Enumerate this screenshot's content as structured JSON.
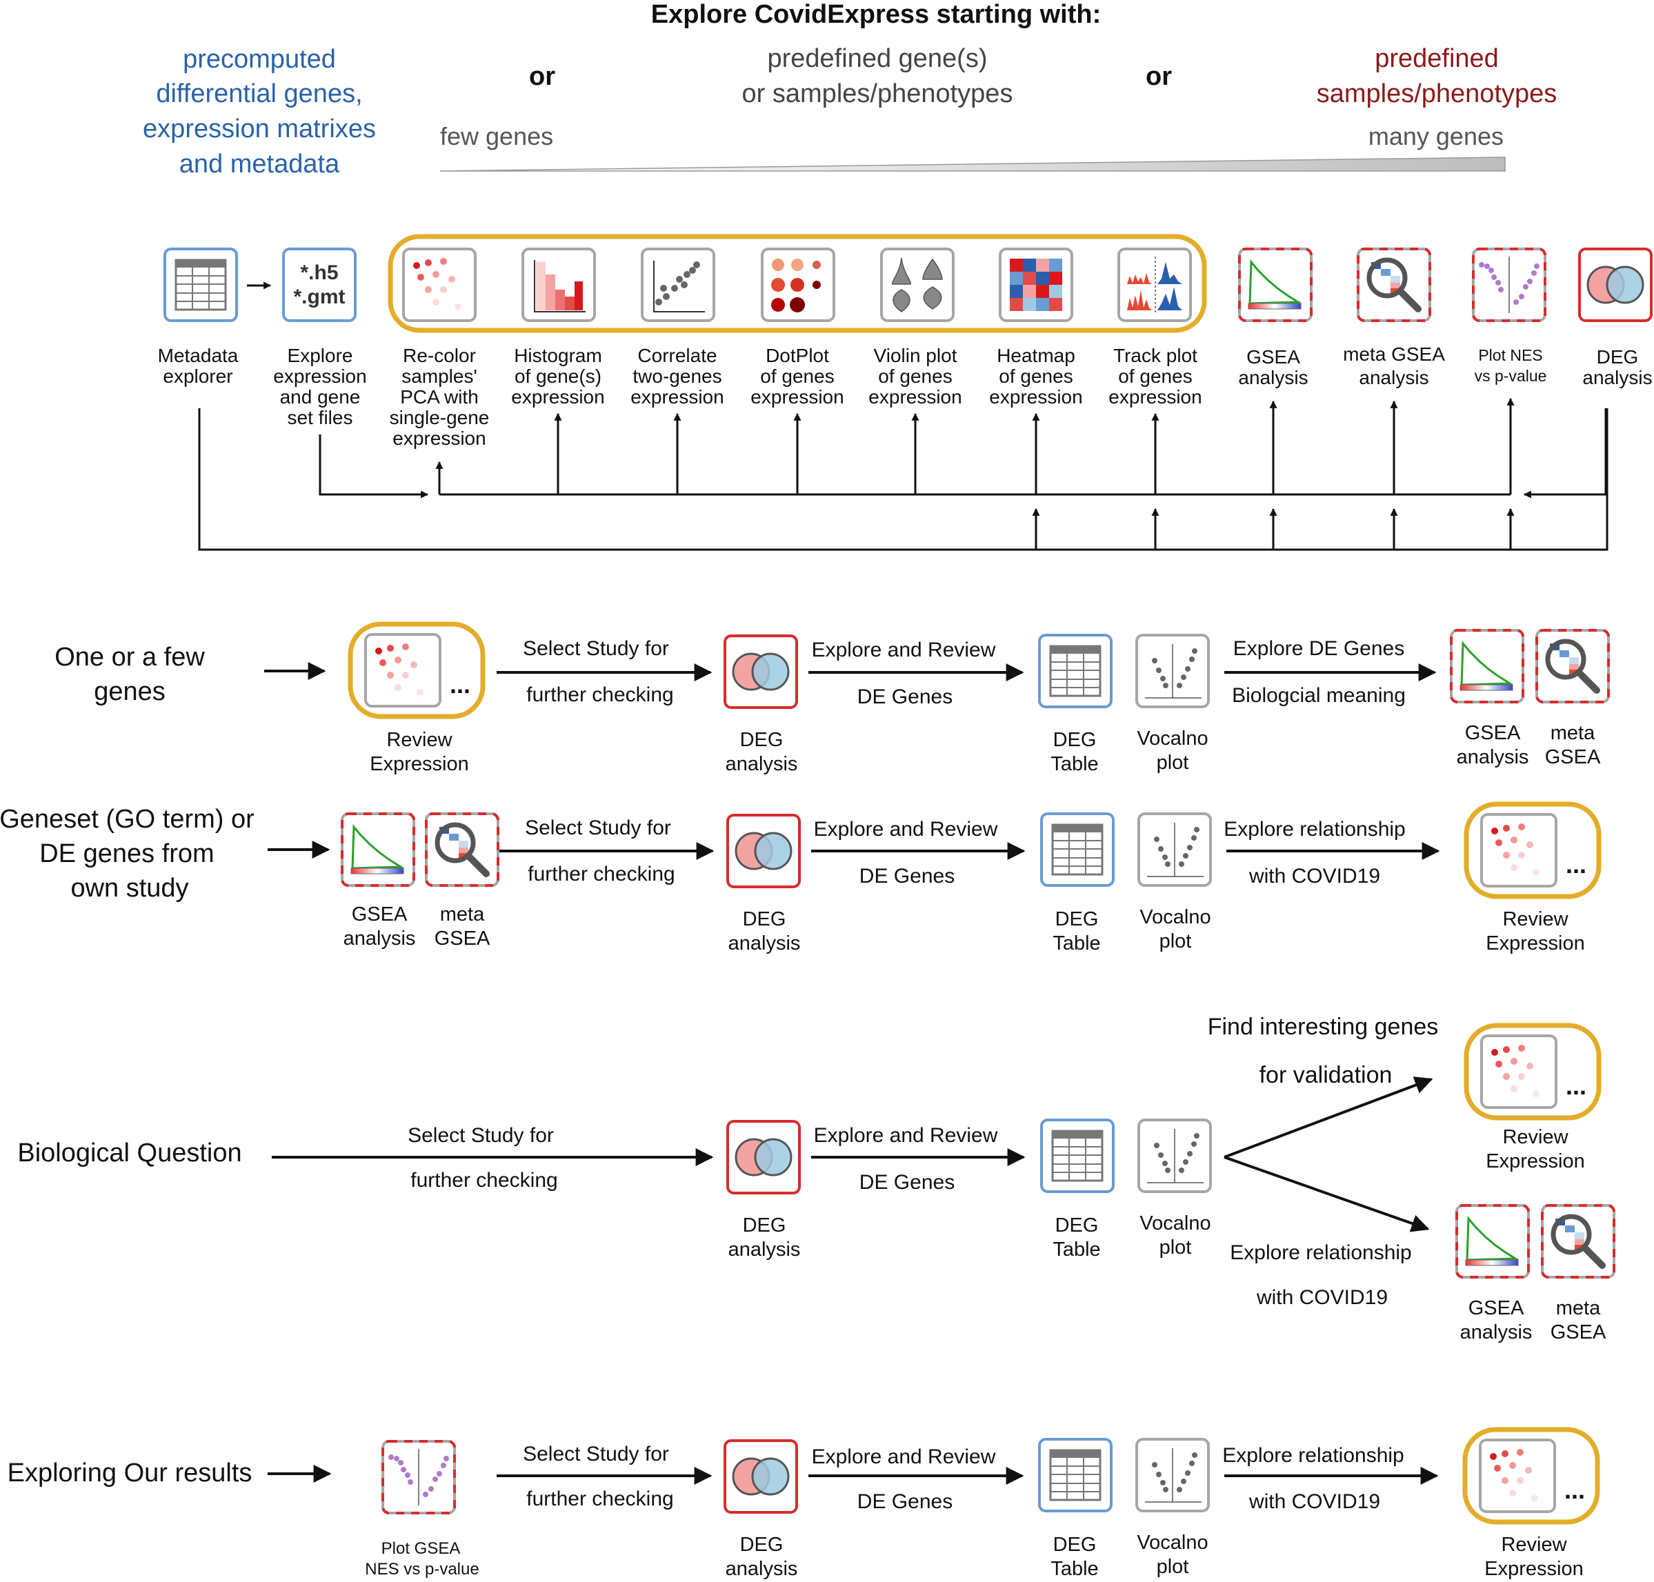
{
  "header": {
    "title": "Explore CovidExpress starting with:",
    "left": [
      "precomputed",
      "differential genes,",
      "expression matrixes",
      "and metadata"
    ],
    "or_left": "or",
    "middle": [
      "predefined gene(s)",
      "or samples/phenotypes"
    ],
    "or_right": "or",
    "right": [
      "predefined",
      "samples/phenotypes"
    ],
    "few_genes": "few genes",
    "many_genes": "many genes"
  },
  "colors": {
    "blue_text": "#2a62a8",
    "red_text": "#8b1a1a",
    "gray_text": "#555555",
    "gold": "#e3ad2a",
    "blue_border": "#6a9bd3",
    "red_border": "#d92b2b",
    "gray_border": "#a6a6a6"
  },
  "tools": [
    {
      "icon": "table-icon",
      "label": [
        "Metadata",
        "explorer"
      ]
    },
    {
      "icon": "file-icon",
      "file_text": [
        "*.h5",
        "*.gmt"
      ],
      "label": [
        "Explore",
        "expression",
        "and gene",
        "set files"
      ]
    },
    {
      "icon": "pca-icon",
      "label": [
        "Re-color",
        "samples'",
        "PCA with",
        "single-gene",
        "expression"
      ]
    },
    {
      "icon": "histogram-icon",
      "label": [
        "Histogram",
        "of gene(s)",
        "expression"
      ]
    },
    {
      "icon": "scatter-icon",
      "label": [
        "Correlate",
        "two-genes",
        "expression"
      ]
    },
    {
      "icon": "dotplot-icon",
      "label": [
        "DotPlot",
        "of genes",
        "expression"
      ]
    },
    {
      "icon": "violin-icon",
      "label": [
        "Violin plot",
        "of genes",
        "expression"
      ]
    },
    {
      "icon": "heatmap-icon",
      "label": [
        "Heatmap",
        "of genes",
        "expression"
      ]
    },
    {
      "icon": "track-icon",
      "label": [
        "Track plot",
        "of genes",
        "expression"
      ]
    },
    {
      "icon": "gsea-icon",
      "label": [
        "GSEA",
        "analysis"
      ]
    },
    {
      "icon": "meta-gsea-icon",
      "label": [
        "meta GSEA",
        "analysis"
      ]
    },
    {
      "icon": "nes-plot-icon",
      "label": [
        "Plot NES",
        "vs p-value"
      ]
    },
    {
      "icon": "venn-icon",
      "label": [
        "DEG",
        "analysis"
      ]
    }
  ],
  "workflows": [
    {
      "start": [
        "One or a few",
        "genes"
      ],
      "step1": {
        "label": [
          "Review",
          "Expression"
        ]
      },
      "arrow1": [
        "Select Study for",
        "further checking"
      ],
      "deg": [
        "DEG",
        "analysis"
      ],
      "arrow2": [
        "Explore and Review",
        "DE Genes"
      ],
      "deg_table": [
        "DEG",
        "Table"
      ],
      "volcano": [
        "Vocalno",
        "plot"
      ],
      "arrow3": [
        "Explore DE Genes",
        "Biologcial meaning"
      ],
      "end_gsea": [
        "GSEA",
        "analysis"
      ],
      "end_meta": [
        "meta",
        "GSEA"
      ]
    },
    {
      "start": [
        "Geneset (GO term) or",
        "DE genes from",
        "own study"
      ],
      "step1_gsea": [
        "GSEA",
        "analysis"
      ],
      "step1_meta": [
        "meta",
        "GSEA"
      ],
      "arrow1": [
        "Select Study for",
        "further checking"
      ],
      "deg": [
        "DEG",
        "analysis"
      ],
      "arrow2": [
        "Explore and Review",
        "DE Genes"
      ],
      "deg_table": [
        "DEG",
        "Table"
      ],
      "volcano": [
        "Vocalno",
        "plot"
      ],
      "arrow3": [
        "Explore relationship",
        "with COVID19"
      ],
      "end_review": [
        "Review",
        "Expression"
      ]
    },
    {
      "start": [
        "Biological Question"
      ],
      "arrow1": [
        "Select Study for",
        "further checking"
      ],
      "deg": [
        "DEG",
        "analysis"
      ],
      "arrow2": [
        "Explore and Review",
        "DE Genes"
      ],
      "deg_table": [
        "DEG",
        "Table"
      ],
      "volcano": [
        "Vocalno",
        "plot"
      ],
      "branch_up": [
        "Find interesting genes",
        "for validation"
      ],
      "end_review": [
        "Review",
        "Expression"
      ],
      "branch_down": [
        "Explore relationship",
        "with COVID19"
      ],
      "end_gsea": [
        "GSEA",
        "analysis"
      ],
      "end_meta": [
        "meta",
        "GSEA"
      ]
    },
    {
      "start": [
        "Exploring Our results"
      ],
      "step1": [
        "Plot GSEA",
        "NES vs p-value"
      ],
      "arrow1": [
        "Select Study for",
        "further checking"
      ],
      "deg": [
        "DEG",
        "analysis"
      ],
      "arrow2": [
        "Explore and Review",
        "DE Genes"
      ],
      "deg_table": [
        "DEG",
        "Table"
      ],
      "volcano": [
        "Vocalno",
        "plot"
      ],
      "arrow3": [
        "Explore relationship",
        "with COVID19"
      ],
      "end_review": [
        "Review",
        "Expression"
      ]
    }
  ],
  "ellipsis": "..."
}
